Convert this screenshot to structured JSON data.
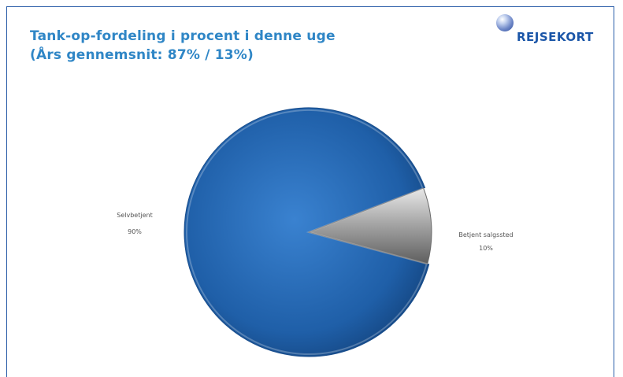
{
  "title": {
    "line1": "Tank-op-fordeling i procent i denne uge",
    "line2": "(Års gennemsnit: 87% / 13%)"
  },
  "logo": {
    "text": "REJSEKORT"
  },
  "chart_data": {
    "type": "pie",
    "title": "Tank-op-fordeling i procent i denne uge (Års gennemsnit: 87% / 13%)",
    "legend": "none",
    "slices": [
      {
        "label": "Selvbetjent",
        "value": 90,
        "value_label": "90%",
        "color": "#1f5fa8"
      },
      {
        "label": "Betjent salgssted",
        "value": 10,
        "value_label": "10%",
        "color": "#9a9a9a"
      }
    ]
  }
}
